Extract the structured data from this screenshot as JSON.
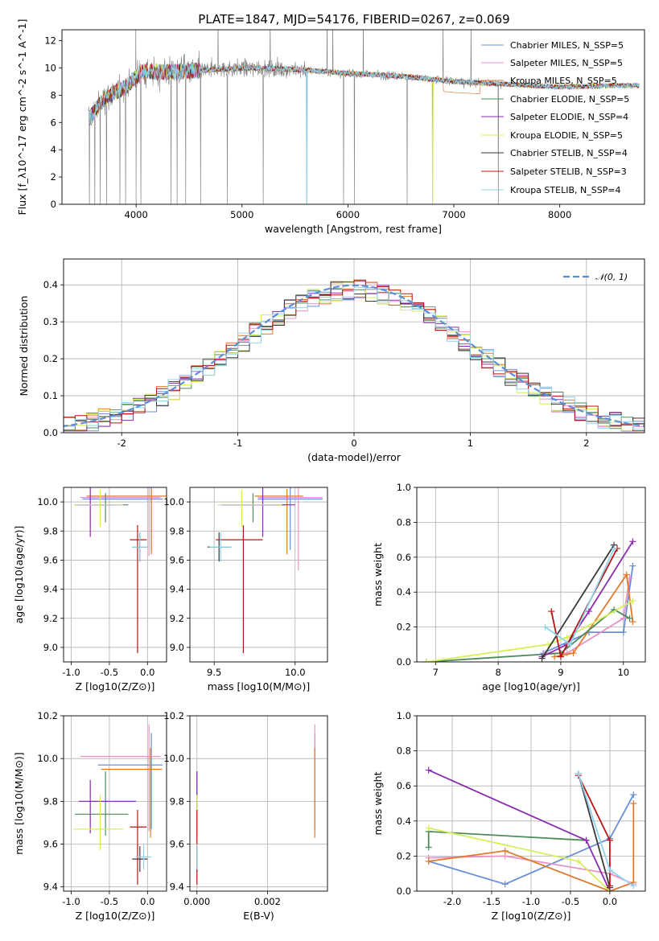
{
  "title": "PLATE=1847, MJD=54176, FIBERID=0267, z=0.069",
  "colors": [
    "#6a8fd8",
    "#e892c6",
    "#e07a2a",
    "#4f8a5a",
    "#8a2bb0",
    "#d6ee5a",
    "#3a3a3a",
    "#b81414",
    "#8fd4ee"
  ],
  "chart_data": [
    {
      "id": "spectrum",
      "type": "line",
      "xlabel": "wavelength [Angstrom, rest frame]",
      "ylabel": "Flux [f_λ10^-17 erg cm^-2 s^-1 A^-1]",
      "xticks": [
        4000,
        5000,
        6000,
        7000,
        8000
      ],
      "yticks": [
        0,
        2,
        4,
        6,
        8,
        10,
        12
      ],
      "xlim": [
        3300,
        8800
      ],
      "ylim": [
        0,
        12.8
      ],
      "legend_position": "upper right",
      "series": [
        {
          "name": "Chabrier MILES, N_SSP=5"
        },
        {
          "name": "Salpeter MILES, N_SSP=5"
        },
        {
          "name": "Kroupa MILES, N_SSP=5"
        },
        {
          "name": "Chabrier ELODIE, N_SSP=5"
        },
        {
          "name": "Salpeter ELODIE, N_SSP=4"
        },
        {
          "name": "Kroupa ELODIE, N_SSP=5"
        },
        {
          "name": "Chabrier STELIB, N_SSP=4"
        },
        {
          "name": "Salpeter STELIB, N_SSP=3"
        },
        {
          "name": "Kroupa STELIB, N_SSP=4"
        }
      ],
      "continuum": [
        [
          3550,
          6.2
        ],
        [
          3700,
          7.8
        ],
        [
          3900,
          8.6
        ],
        [
          4050,
          9.7
        ],
        [
          4300,
          9.7
        ],
        [
          4600,
          9.8
        ],
        [
          5000,
          10.0
        ],
        [
          5500,
          9.9
        ],
        [
          6000,
          9.6
        ],
        [
          6500,
          9.4
        ],
        [
          7000,
          9.0
        ],
        [
          7500,
          8.8
        ],
        [
          8000,
          8.6
        ],
        [
          8500,
          8.7
        ]
      ]
    },
    {
      "id": "residuals",
      "type": "histogram",
      "xlabel": "(data-model)/error",
      "ylabel": "Normed distribution",
      "xticks": [
        -2,
        -1,
        0,
        1,
        2
      ],
      "yticks": [
        0.0,
        0.1,
        0.2,
        0.3,
        0.4
      ],
      "xlim": [
        -2.5,
        2.5
      ],
      "ylim": [
        0,
        0.47
      ],
      "bin_width": 0.1,
      "reference": {
        "name": "N(0,1)",
        "mean": 0,
        "sigma": 1
      },
      "legend_position": "upper right"
    },
    {
      "id": "age_vs_Z",
      "type": "errorbar",
      "xlabel": "Z [log10(Z/Z⊙)]",
      "ylabel": "age [log10(age/yr)]",
      "xticks": [
        -1.0,
        -0.5,
        0.0
      ],
      "yticks": [
        9.0,
        9.2,
        9.4,
        9.6,
        9.8,
        10.0
      ],
      "xlim": [
        -1.1,
        0.25
      ],
      "ylim": [
        8.9,
        10.1
      ],
      "points": [
        {
          "x": 0.05,
          "y": 10.02,
          "xerr": [
            0.9,
            0.15
          ],
          "yerr": [
            0.35,
            0.08
          ],
          "c": 0
        },
        {
          "x": 0.02,
          "y": 10.03,
          "xerr": [
            0.9,
            0.15
          ],
          "yerr": [
            0.4,
            0.12
          ],
          "c": 1
        },
        {
          "x": 0.05,
          "y": 10.04,
          "xerr": [
            0.85,
            0.2
          ],
          "yerr": [
            0.4,
            0.05
          ],
          "c": 2
        },
        {
          "x": -0.55,
          "y": 9.98,
          "xerr": [
            0.35,
            0.3
          ],
          "yerr": [
            0.12,
            0.08
          ],
          "c": 3
        },
        {
          "x": -0.75,
          "y": 9.98,
          "xerr": [
            0.2,
            0.3
          ],
          "yerr": [
            0.22,
            0.12
          ],
          "c": 4
        },
        {
          "x": -0.62,
          "y": 9.98,
          "xerr": [
            0.35,
            0.3
          ],
          "yerr": [
            0.15,
            0.1
          ],
          "c": 5
        },
        {
          "x": -0.1,
          "y": 9.69,
          "xerr": [
            0.1,
            0.1
          ],
          "yerr": [
            0.1,
            0.1
          ],
          "c": 6
        },
        {
          "x": -0.13,
          "y": 9.74,
          "xerr": [
            0.1,
            0.12
          ],
          "yerr": [
            0.78,
            0.1
          ],
          "c": 7
        },
        {
          "x": -0.1,
          "y": 9.69,
          "xerr": [
            0.1,
            0.1
          ],
          "yerr": [
            0.1,
            0.1
          ],
          "c": 8
        }
      ]
    },
    {
      "id": "age_vs_mass",
      "type": "errorbar",
      "xlabel": "mass [log10(M/M⊙)]",
      "ylabel": "",
      "xticks": [
        9.5,
        10.0
      ],
      "yticks": [
        9.0,
        9.2,
        9.4,
        9.6,
        9.8,
        10.0
      ],
      "xlim": [
        9.35,
        10.2
      ],
      "ylim": [
        8.9,
        10.1
      ],
      "points": [
        {
          "x": 9.97,
          "y": 10.02,
          "xerr": [
            0.2,
            0.2
          ],
          "yerr": [
            0.35,
            0.08
          ],
          "c": 0
        },
        {
          "x": 10.02,
          "y": 10.03,
          "xerr": [
            0.25,
            0.15
          ],
          "yerr": [
            0.5,
            0.12
          ],
          "c": 1
        },
        {
          "x": 9.95,
          "y": 10.04,
          "xerr": [
            0.2,
            0.1
          ],
          "yerr": [
            0.4,
            0.05
          ],
          "c": 2
        },
        {
          "x": 9.74,
          "y": 9.98,
          "xerr": [
            0.2,
            0.2
          ],
          "yerr": [
            0.12,
            0.08
          ],
          "c": 3
        },
        {
          "x": 9.8,
          "y": 9.98,
          "xerr": [
            0.25,
            0.2
          ],
          "yerr": [
            0.22,
            0.12
          ],
          "c": 4
        },
        {
          "x": 9.67,
          "y": 9.98,
          "xerr": [
            0.15,
            0.25
          ],
          "yerr": [
            0.15,
            0.1
          ],
          "c": 5
        },
        {
          "x": 9.53,
          "y": 9.69,
          "xerr": [
            0.07,
            0.07
          ],
          "yerr": [
            0.1,
            0.1
          ],
          "c": 6
        },
        {
          "x": 9.68,
          "y": 9.74,
          "xerr": [
            0.17,
            0.12
          ],
          "yerr": [
            0.78,
            0.1
          ],
          "c": 7
        },
        {
          "x": 9.54,
          "y": 9.69,
          "xerr": [
            0.07,
            0.07
          ],
          "yerr": [
            0.1,
            0.1
          ],
          "c": 8
        }
      ]
    },
    {
      "id": "weight_vs_age",
      "type": "line",
      "xlabel": "age [log10(age/yr)]",
      "ylabel": "mass weight",
      "xticks": [
        7,
        8,
        9,
        10
      ],
      "yticks": [
        0.0,
        0.2,
        0.4,
        0.6,
        0.8,
        1.0
      ],
      "xlim": [
        6.7,
        10.35
      ],
      "ylim": [
        0,
        1.0
      ],
      "series": [
        {
          "c": 0,
          "x": [
            8.72,
            9.45,
            10.0,
            10.15
          ],
          "y": [
            0.05,
            0.17,
            0.17,
            0.55
          ]
        },
        {
          "c": 1,
          "x": [
            8.75,
            9.1,
            10.0,
            10.1
          ],
          "y": [
            0.05,
            0.05,
            0.25,
            0.48
          ]
        },
        {
          "c": 2,
          "x": [
            8.9,
            9.2,
            10.05,
            10.15
          ],
          "y": [
            0.03,
            0.05,
            0.5,
            0.23
          ]
        },
        {
          "c": 3,
          "x": [
            6.85,
            9.0,
            9.85,
            10.1
          ],
          "y": [
            0.0,
            0.05,
            0.3,
            0.25
          ]
        },
        {
          "c": 4,
          "x": [
            8.7,
            9.1,
            9.45,
            10.15
          ],
          "y": [
            0.03,
            0.1,
            0.29,
            0.69
          ]
        },
        {
          "c": 5,
          "x": [
            6.85,
            8.8,
            9.1,
            10.15
          ],
          "y": [
            0.0,
            0.1,
            0.14,
            0.35
          ]
        },
        {
          "c": 6,
          "x": [
            8.7,
            9.85
          ],
          "y": [
            0.02,
            0.67
          ]
        },
        {
          "c": 7,
          "x": [
            8.85,
            9.0,
            9.9
          ],
          "y": [
            0.29,
            0.03,
            0.65
          ]
        },
        {
          "c": 8,
          "x": [
            8.75,
            9.15,
            9.85
          ],
          "y": [
            0.2,
            0.1,
            0.65
          ]
        }
      ]
    },
    {
      "id": "mass_vs_Z",
      "type": "errorbar",
      "xlabel": "Z [log10(Z/Z⊙)]",
      "ylabel": "mass [log10(M/M⊙)]",
      "xticks": [
        -1.0,
        -0.5,
        0.0
      ],
      "yticks": [
        9.4,
        9.6,
        9.8,
        10.0,
        10.2
      ],
      "xlim": [
        -1.1,
        0.25
      ],
      "ylim": [
        9.38,
        10.2
      ],
      "points": [
        {
          "x": 0.05,
          "y": 9.97,
          "xerr": [
            0.7,
            0.15
          ],
          "yerr": [
            0.3,
            0.15
          ],
          "c": 0
        },
        {
          "x": 0.02,
          "y": 10.01,
          "xerr": [
            0.9,
            0.15
          ],
          "yerr": [
            0.35,
            0.15
          ],
          "c": 1
        },
        {
          "x": 0.04,
          "y": 9.95,
          "xerr": [
            0.65,
            0.15
          ],
          "yerr": [
            0.32,
            0.1
          ],
          "c": 2
        },
        {
          "x": -0.55,
          "y": 9.74,
          "xerr": [
            0.4,
            0.3
          ],
          "yerr": [
            0.1,
            0.2
          ],
          "c": 3
        },
        {
          "x": -0.75,
          "y": 9.8,
          "xerr": [
            0.15,
            0.6
          ],
          "yerr": [
            0.15,
            0.1
          ],
          "c": 4
        },
        {
          "x": -0.62,
          "y": 9.67,
          "xerr": [
            0.35,
            0.3
          ],
          "yerr": [
            0.1,
            0.16
          ],
          "c": 5
        },
        {
          "x": -0.1,
          "y": 9.53,
          "xerr": [
            0.1,
            0.1
          ],
          "yerr": [
            0.06,
            0.06
          ],
          "c": 6
        },
        {
          "x": -0.13,
          "y": 9.68,
          "xerr": [
            0.1,
            0.12
          ],
          "yerr": [
            0.27,
            0.08
          ],
          "c": 7
        },
        {
          "x": -0.05,
          "y": 9.54,
          "xerr": [
            0.1,
            0.1
          ],
          "yerr": [
            0.06,
            0.06
          ],
          "c": 8
        }
      ]
    },
    {
      "id": "mass_vs_ebv",
      "type": "errorbar",
      "xlabel": "E(B-V)",
      "ylabel": "",
      "xticks": [
        0.0,
        0.002
      ],
      "xticklabels": [
        "0.000",
        "0.002"
      ],
      "yticks": [
        9.4,
        9.6,
        9.8,
        10.0,
        10.2
      ],
      "xlim": [
        -0.0002,
        0.0037
      ],
      "ylim": [
        9.38,
        10.2
      ],
      "points": [
        {
          "x": 0.00334,
          "y": 9.97,
          "yerr": [
            0.3,
            0.15
          ],
          "c": 0
        },
        {
          "x": 0.00334,
          "y": 10.01,
          "yerr": [
            0.35,
            0.15
          ],
          "c": 1
        },
        {
          "x": 0.00334,
          "y": 9.95,
          "yerr": [
            0.32,
            0.1
          ],
          "c": 2
        },
        {
          "x": 0.0,
          "y": 9.74,
          "yerr": [
            0.1,
            0.2
          ],
          "c": 3
        },
        {
          "x": 0.0,
          "y": 9.8,
          "yerr": [
            0.15,
            0.14
          ],
          "c": 4
        },
        {
          "x": 0.0,
          "y": 9.67,
          "yerr": [
            0.1,
            0.16
          ],
          "c": 5
        },
        {
          "x": 0.0,
          "y": 9.53,
          "yerr": [
            0.06,
            0.06
          ],
          "c": 6
        },
        {
          "x": 0.0,
          "y": 9.68,
          "yerr": [
            0.27,
            0.08
          ],
          "c": 7
        },
        {
          "x": 0.0,
          "y": 9.54,
          "yerr": [
            0.06,
            0.06
          ],
          "c": 8
        }
      ]
    },
    {
      "id": "weight_vs_Z",
      "type": "line",
      "xlabel": "Z [log10(Z/Z⊙)]",
      "ylabel": "mass weight",
      "xticks": [
        -2.0,
        -1.5,
        -1.0,
        -0.5,
        0.0
      ],
      "yticks": [
        0.0,
        0.2,
        0.4,
        0.6,
        0.8,
        1.0
      ],
      "xlim": [
        -2.45,
        0.45
      ],
      "ylim": [
        0,
        1.0
      ],
      "series": [
        {
          "c": 0,
          "x": [
            -2.3,
            -1.33,
            0.0,
            0.3
          ],
          "y": [
            0.17,
            0.04,
            0.3,
            0.55
          ]
        },
        {
          "c": 1,
          "x": [
            -2.3,
            -1.33,
            0.0,
            0.3
          ],
          "y": [
            0.19,
            0.2,
            0.1,
            0.04
          ]
        },
        {
          "c": 2,
          "x": [
            -2.3,
            -1.33,
            0.0,
            0.3,
            0.3
          ],
          "y": [
            0.17,
            0.23,
            0.0,
            0.05,
            0.5
          ]
        },
        {
          "c": 3,
          "x": [
            -2.3,
            -2.3,
            -0.3
          ],
          "y": [
            0.25,
            0.34,
            0.29
          ]
        },
        {
          "c": 4,
          "x": [
            -2.3,
            -0.3,
            0.0
          ],
          "y": [
            0.69,
            0.29,
            0.0
          ]
        },
        {
          "c": 5,
          "x": [
            -2.3,
            -0.4,
            0.0
          ],
          "y": [
            0.36,
            0.17,
            0.0
          ]
        },
        {
          "c": 6,
          "x": [
            -0.4,
            0.0
          ],
          "y": [
            0.67,
            0.02
          ]
        },
        {
          "c": 7,
          "x": [
            -0.4,
            0.0,
            0.0
          ],
          "y": [
            0.66,
            0.29,
            0.03
          ]
        },
        {
          "c": 8,
          "x": [
            -0.4,
            0.0,
            0.3
          ],
          "y": [
            0.67,
            0.12,
            0.03
          ]
        }
      ]
    }
  ]
}
